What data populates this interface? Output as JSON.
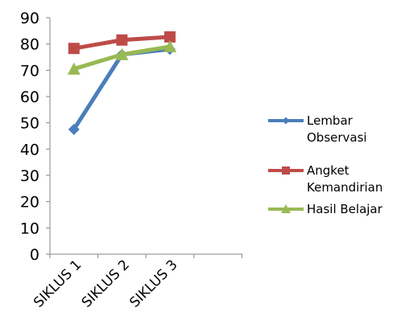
{
  "chart_data": {
    "type": "line",
    "title": "",
    "xlabel": "",
    "ylabel": "",
    "categories": [
      "SIKLUS 1",
      "SIKLUS 2",
      "SIKLUS 3"
    ],
    "ylim": [
      0,
      90
    ],
    "yticks": [
      "0",
      "10",
      "20",
      "30",
      "40",
      "50",
      "60",
      "70",
      "80",
      "90"
    ],
    "grid": false,
    "legend_position": "right",
    "series": [
      {
        "name_lines": [
          "Lembar",
          "Observasi"
        ],
        "color": "#4a7ebb",
        "marker": "diamond",
        "values": [
          47.5,
          76,
          78
        ]
      },
      {
        "name_lines": [
          "Angket",
          "Kemandirian"
        ],
        "color": "#be4b48",
        "marker": "square",
        "values": [
          78.3,
          81.5,
          82.7
        ]
      },
      {
        "name_lines": [
          "Hasil Belajar"
        ],
        "color": "#98b954",
        "marker": "triangle",
        "values": [
          70.5,
          76,
          79
        ]
      }
    ]
  }
}
